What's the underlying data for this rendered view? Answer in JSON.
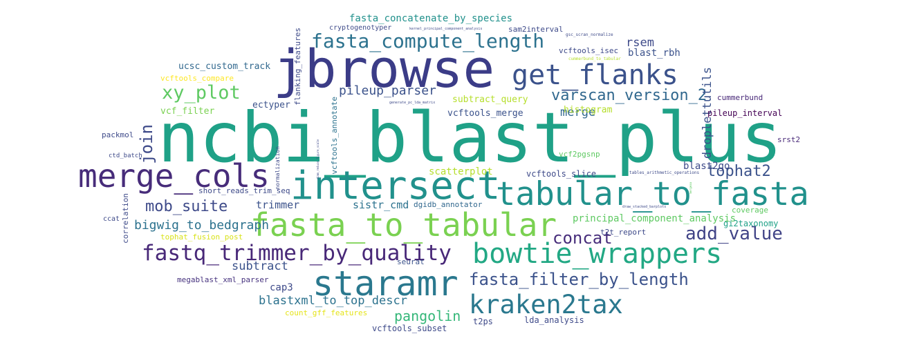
{
  "colors": {
    "dark_purple": "#440154",
    "indigo": "#3b3c87",
    "blue": "#31688e",
    "teal": "#21918c",
    "green_teal": "#1fa187",
    "green": "#5ec962",
    "light_green": "#8fd744",
    "yellow_green": "#b5de2b",
    "yellow": "#e3e418"
  },
  "words": [
    {
      "text": "ncbi_blast_plus",
      "color": "#1fa187"
    },
    {
      "text": "jbrowse",
      "color": "#3b3c87"
    },
    {
      "text": "intersect",
      "color": "#21918c"
    },
    {
      "text": "fasta_to_tabular",
      "color": "#7ad151"
    },
    {
      "text": "tabular_to_fasta",
      "color": "#21918c"
    },
    {
      "text": "merge_cols",
      "color": "#472c7a"
    },
    {
      "text": "staramr",
      "color": "#2a788e"
    },
    {
      "text": "get_flanks",
      "color": "#3b528b"
    },
    {
      "text": "bowtie_wrappers",
      "color": "#22a884"
    },
    {
      "text": "fasta_compute_length",
      "color": "#2c728e"
    },
    {
      "text": "fastq_trimmer_by_quality",
      "color": "#482878"
    },
    {
      "text": "kraken2tax",
      "color": "#2a788e"
    },
    {
      "text": "xy_plot",
      "color": "#5ec962"
    },
    {
      "text": "fasta_filter_by_length",
      "color": "#3b528b"
    },
    {
      "text": "varscan_version_2",
      "color": "#31688e"
    },
    {
      "text": "mob_suite",
      "color": "#3e4a89"
    },
    {
      "text": "tophat2",
      "color": "#3b528b"
    },
    {
      "text": "add_value",
      "color": "#414487"
    },
    {
      "text": "concat",
      "color": "#472d7b"
    },
    {
      "text": "pangolin",
      "color": "#35b779"
    },
    {
      "text": "bigwig_to_bedgraph",
      "color": "#2c728e"
    },
    {
      "text": "pileup_parser",
      "color": "#3b528b"
    },
    {
      "text": "join",
      "color": "#3e4a89"
    },
    {
      "text": "merge",
      "color": "#31688e"
    },
    {
      "text": "droplettutils",
      "color": "#3b528b"
    },
    {
      "text": "subtract",
      "color": "#3b528b"
    },
    {
      "text": "blastxml_to_top_descr",
      "color": "#2c728e"
    },
    {
      "text": "ucsc_custom_track",
      "color": "#31688e"
    },
    {
      "text": "fasta_concatenate_by_species",
      "color": "#21918c"
    },
    {
      "text": "rsem",
      "color": "#3e4a89"
    },
    {
      "text": "blast_rbh",
      "color": "#3b528b"
    },
    {
      "text": "trimmer",
      "color": "#3b528b"
    },
    {
      "text": "sistr_cmd",
      "color": "#2c728e"
    },
    {
      "text": "blast2go",
      "color": "#3e4a89"
    },
    {
      "text": "vcftools_merge",
      "color": "#3b528b"
    },
    {
      "text": "vcftools_slice",
      "color": "#3e4a89"
    },
    {
      "text": "histogram",
      "color": "#b5de2b"
    },
    {
      "text": "principal_component_analysis",
      "color": "#5ec962"
    },
    {
      "text": "cap3",
      "color": "#3e4a89"
    },
    {
      "text": "scatterplot",
      "color": "#b5de2b"
    },
    {
      "text": "subtract_query",
      "color": "#b5de2b"
    },
    {
      "text": "vcf_filter",
      "color": "#7ad151"
    },
    {
      "text": "ectyper",
      "color": "#3b528b"
    },
    {
      "text": "vcftools_compare",
      "color": "#fde725"
    },
    {
      "text": "tophat_fusion_post",
      "color": "#d8e219"
    },
    {
      "text": "count_gff_features",
      "color": "#e5e419"
    },
    {
      "text": "short_reads_trim_seq",
      "color": "#3e4a89"
    },
    {
      "text": "megablast_xml_parser",
      "color": "#46327e"
    },
    {
      "text": "vcftools_subset",
      "color": "#3e4a89"
    },
    {
      "text": "lda_analysis",
      "color": "#3e4a89"
    },
    {
      "text": "t2ps",
      "color": "#3e4a89"
    },
    {
      "text": "seurat",
      "color": "#3b528b"
    },
    {
      "text": "coverage",
      "color": "#5ec962"
    },
    {
      "text": "gi2taxonomy",
      "color": "#1fa187"
    },
    {
      "text": "t2t_report",
      "color": "#3e4a89"
    },
    {
      "text": "dgidb_annotator",
      "color": "#31688e"
    },
    {
      "text": "vcf2pgsnp",
      "color": "#5ec962"
    },
    {
      "text": "cummerbund",
      "color": "#482878"
    },
    {
      "text": "pileup_interval",
      "color": "#440154"
    },
    {
      "text": "srst2",
      "color": "#482878"
    },
    {
      "text": "packmol",
      "color": "#3e4a89"
    },
    {
      "text": "ctd_batch",
      "color": "#3e4a89"
    },
    {
      "text": "ccat",
      "color": "#3e4a89"
    },
    {
      "text": "correlation",
      "color": "#3e4a89"
    },
    {
      "text": "normalization",
      "color": "#3e4a89"
    },
    {
      "text": "vcftools_annotate",
      "color": "#2c728e"
    },
    {
      "text": "flanking_features",
      "color": "#3e4a89"
    },
    {
      "text": "vcftools_isec",
      "color": "#3e4a89"
    },
    {
      "text": "cryptogenotyper",
      "color": "#3e4a89"
    },
    {
      "text": "sam2interval",
      "color": "#3e4a89"
    },
    {
      "text": "kernel_principal_component_analysis",
      "color": "#3e4a89"
    },
    {
      "text": "gsc_scran_normalize",
      "color": "#3e4a89"
    },
    {
      "text": "cummerbund_to_tabular",
      "color": "#b5de2b"
    },
    {
      "text": "generate_pc_lda_matrix",
      "color": "#3e4a89"
    },
    {
      "text": "draw_stacked_barplots",
      "color": "#3e4a89"
    },
    {
      "text": "tables_arithmetic_operations",
      "color": "#3e4a89"
    },
    {
      "text": "mergeaa",
      "color": "#5ec962"
    },
    {
      "text": "dimm_reduce_figure_scale",
      "color": "#3e4a89"
    }
  ]
}
